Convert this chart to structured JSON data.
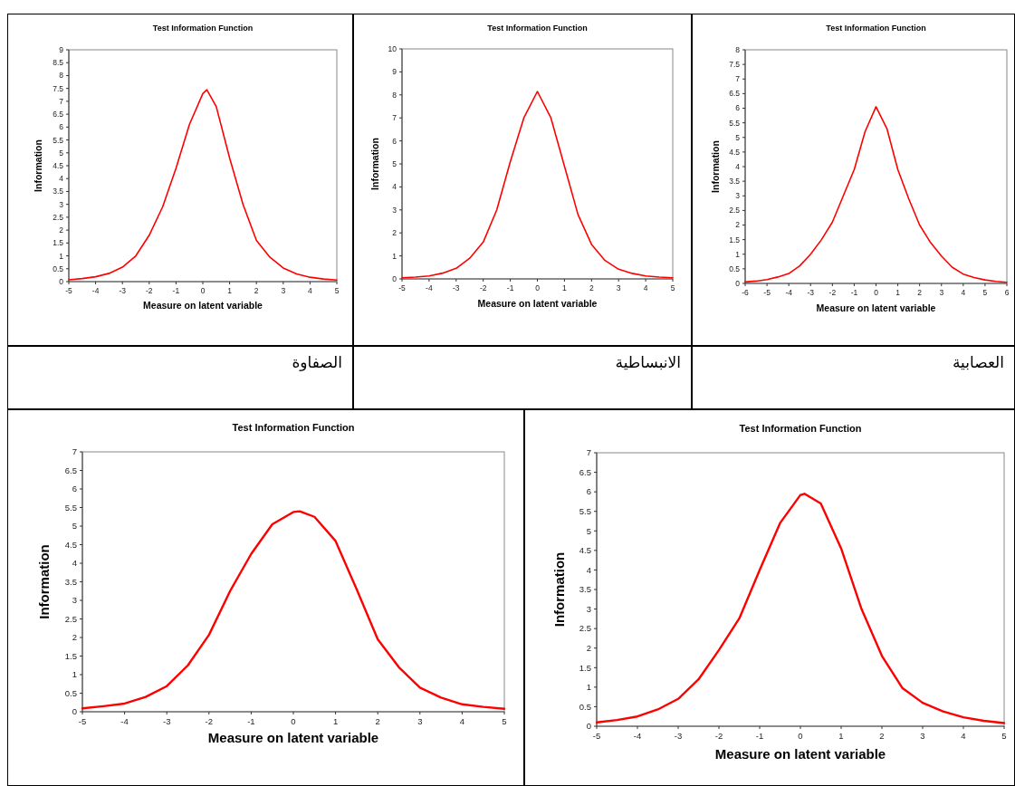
{
  "chart_data": [
    {
      "type": "line",
      "title": "Test Information Function",
      "xlabel": "Measure on latent variable",
      "ylabel": "Information",
      "xlim": [
        -5,
        5
      ],
      "ylim": [
        0,
        9
      ],
      "xticks": [
        -5,
        -4,
        -3,
        -2,
        -1,
        0,
        1,
        2,
        3,
        4,
        5
      ],
      "yticks": [
        0,
        0.5,
        1,
        1.5,
        2,
        2.5,
        3,
        3.5,
        4,
        4.5,
        5,
        5.5,
        6,
        6.5,
        7,
        7.5,
        8,
        8.5,
        9
      ],
      "annotations": [
        "الصفاوة"
      ],
      "x": [
        -5,
        -4.5,
        -4,
        -3.5,
        -3,
        -2.5,
        -2,
        -1.5,
        -1,
        -0.5,
        0,
        0.15,
        0.5,
        1,
        1.5,
        2,
        2.5,
        3,
        3.5,
        4,
        4.5,
        5
      ],
      "series": [
        {
          "color": "#ff0000",
          "values": [
            0.07,
            0.12,
            0.19,
            0.32,
            0.56,
            1.0,
            1.8,
            2.9,
            4.4,
            6.1,
            7.3,
            7.45,
            6.8,
            4.8,
            3.0,
            1.6,
            0.95,
            0.53,
            0.3,
            0.17,
            0.1,
            0.06
          ]
        }
      ]
    },
    {
      "type": "line",
      "title": "Test Information Function",
      "xlabel": "Measure on latent variable",
      "ylabel": "Information",
      "xlim": [
        -5,
        5
      ],
      "ylim": [
        0,
        10
      ],
      "xticks": [
        -5,
        -4,
        -3,
        -2,
        -1,
        0,
        1,
        2,
        3,
        4,
        5
      ],
      "yticks": [
        0,
        1,
        2,
        3,
        4,
        5,
        6,
        7,
        8,
        9,
        10
      ],
      "annotations": [
        "الانبساطية"
      ],
      "x": [
        -5,
        -4.5,
        -4,
        -3.5,
        -3,
        -2.5,
        -2,
        -1.5,
        -1,
        -0.5,
        0,
        0.5,
        1,
        1.5,
        2,
        2.5,
        3,
        3.5,
        4,
        4.5,
        5
      ],
      "series": [
        {
          "color": "#ff0000",
          "values": [
            0.05,
            0.08,
            0.13,
            0.25,
            0.46,
            0.9,
            1.6,
            3.0,
            5.1,
            7.0,
            8.15,
            7.0,
            4.9,
            2.8,
            1.5,
            0.8,
            0.42,
            0.24,
            0.13,
            0.08,
            0.05
          ]
        }
      ]
    },
    {
      "type": "line",
      "title": "Test Information Function",
      "xlabel": "Measure on latent variable",
      "ylabel": "Information",
      "xlim": [
        -6,
        6
      ],
      "ylim": [
        0,
        8
      ],
      "xticks": [
        -6,
        -5,
        -4,
        -3,
        -2,
        -1,
        0,
        1,
        2,
        3,
        4,
        5,
        6
      ],
      "yticks": [
        0,
        0.5,
        1,
        1.5,
        2,
        2.5,
        3,
        3.5,
        4,
        4.5,
        5,
        5.5,
        6,
        6.5,
        7,
        7.5,
        8
      ],
      "annotations": [
        "العصابية"
      ],
      "x": [
        -6,
        -5.5,
        -5,
        -4.5,
        -4,
        -3.5,
        -3,
        -2.5,
        -2,
        -1.5,
        -1,
        -0.5,
        0,
        0.5,
        1,
        1.5,
        2,
        2.5,
        3,
        3.5,
        4,
        4.5,
        5,
        5.5,
        6
      ],
      "series": [
        {
          "color": "#ff0000",
          "values": [
            0.05,
            0.08,
            0.13,
            0.22,
            0.34,
            0.6,
            1.0,
            1.5,
            2.1,
            3.0,
            3.9,
            5.2,
            6.05,
            5.3,
            3.9,
            2.9,
            2.0,
            1.4,
            0.94,
            0.55,
            0.32,
            0.2,
            0.12,
            0.07,
            0.04
          ]
        }
      ]
    },
    {
      "type": "line",
      "title": "Test Information Function",
      "xlabel": "Measure on latent variable",
      "ylabel": "Information",
      "xlim": [
        -5,
        5
      ],
      "ylim": [
        0,
        7
      ],
      "xticks": [
        -5,
        -4,
        -3,
        -2,
        -1,
        0,
        1,
        2,
        3,
        4,
        5
      ],
      "yticks": [
        0,
        0.5,
        1,
        1.5,
        2,
        2.5,
        3,
        3.5,
        4,
        4.5,
        5,
        5.5,
        6,
        6.5,
        7
      ],
      "x": [
        -5,
        -4.5,
        -4,
        -3.5,
        -3,
        -2.5,
        -2,
        -1.5,
        -1,
        -0.5,
        0,
        0.15,
        0.5,
        1,
        1.5,
        2,
        2.5,
        3,
        3.5,
        4,
        4.5,
        5
      ],
      "series": [
        {
          "color": "#ff0000",
          "values": [
            0.09,
            0.15,
            0.22,
            0.4,
            0.69,
            1.25,
            2.07,
            3.25,
            4.25,
            5.05,
            5.38,
            5.4,
            5.25,
            4.6,
            3.3,
            1.95,
            1.2,
            0.65,
            0.38,
            0.2,
            0.13,
            0.08
          ]
        }
      ]
    },
    {
      "type": "line",
      "title": "Test Information Function",
      "xlabel": "Measure on latent variable",
      "ylabel": "Information",
      "xlim": [
        -5,
        5
      ],
      "ylim": [
        0,
        7
      ],
      "xticks": [
        -5,
        -4,
        -3,
        -2,
        -1,
        0,
        1,
        2,
        3,
        4,
        5
      ],
      "yticks": [
        0,
        0.5,
        1,
        1.5,
        2,
        2.5,
        3,
        3.5,
        4,
        4.5,
        5,
        5.5,
        6,
        6.5,
        7
      ],
      "x": [
        -5,
        -4.5,
        -4,
        -3.5,
        -3,
        -2.5,
        -2,
        -1.5,
        -1,
        -0.5,
        0,
        0.1,
        0.5,
        1,
        1.5,
        2,
        2.5,
        3,
        3.5,
        4,
        4.5,
        5
      ],
      "series": [
        {
          "color": "#ff0000",
          "values": [
            0.1,
            0.16,
            0.25,
            0.43,
            0.7,
            1.2,
            1.95,
            2.76,
            4.0,
            5.2,
            5.92,
            5.95,
            5.7,
            4.55,
            3.0,
            1.8,
            0.98,
            0.6,
            0.38,
            0.23,
            0.14,
            0.08
          ]
        }
      ]
    }
  ]
}
